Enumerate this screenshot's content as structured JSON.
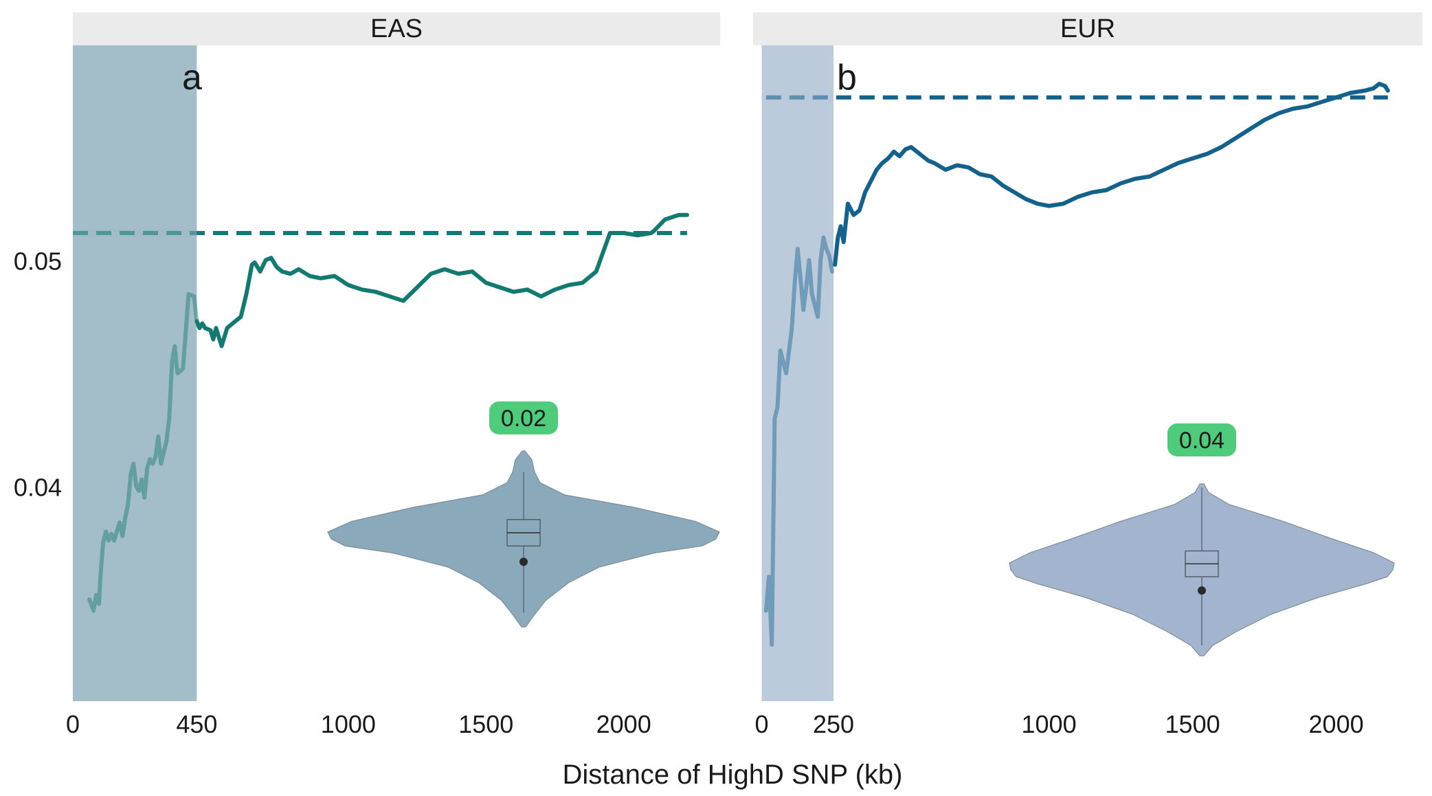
{
  "figure": {
    "xlabel": "Distance of HighD SNP (kb)"
  },
  "chart_data": [
    {
      "type": "line",
      "facet": "EAS",
      "panel_label": "a",
      "xlim": [
        0,
        2350
      ],
      "ylim": [
        0.0305,
        0.0595
      ],
      "y_ticks": [
        0.04,
        0.05
      ],
      "y_tick_labels": [
        "0.04",
        "0.05"
      ],
      "x_ticks": [
        0,
        450,
        1000,
        1500,
        2000
      ],
      "x_tick_labels": [
        "0",
        "450",
        "1000",
        "1500",
        "2000"
      ],
      "shaded_region": [
        0,
        450
      ],
      "colors": {
        "line": "#137a72",
        "shade": "#9fbbc6",
        "strip": "#ebebeb",
        "violin": "#8aaabb",
        "badge": "#4fcb7c"
      },
      "series": [
        {
          "x": [
            60,
            75,
            85,
            95,
            100,
            110,
            120,
            130,
            140,
            150,
            160,
            170,
            180,
            190,
            200,
            210,
            220,
            230,
            240,
            250,
            260,
            270,
            280,
            290,
            300,
            310,
            320,
            330,
            340,
            350,
            360,
            370,
            380,
            400,
            420,
            440,
            450,
            460,
            470,
            480,
            500,
            510,
            520,
            540,
            560,
            580,
            610,
            630,
            650,
            660,
            680,
            700,
            720,
            740,
            760,
            790,
            820,
            860,
            900,
            950,
            1000,
            1050,
            1100,
            1150,
            1200,
            1250,
            1300,
            1350,
            1400,
            1450,
            1500,
            1550,
            1600,
            1650,
            1700,
            1750,
            1800,
            1850,
            1900,
            1950,
            2000,
            2050,
            2100,
            2110,
            2150,
            2200,
            2230
          ],
          "y": [
            0.035,
            0.0345,
            0.0352,
            0.0348,
            0.036,
            0.0375,
            0.038,
            0.0376,
            0.0379,
            0.0376,
            0.038,
            0.0384,
            0.0378,
            0.0386,
            0.0392,
            0.0405,
            0.041,
            0.04,
            0.0398,
            0.0403,
            0.0395,
            0.0408,
            0.0412,
            0.041,
            0.0413,
            0.0422,
            0.041,
            0.0415,
            0.042,
            0.043,
            0.0455,
            0.0462,
            0.045,
            0.0452,
            0.0485,
            0.0484,
            0.0473,
            0.047,
            0.0472,
            0.047,
            0.0469,
            0.0465,
            0.047,
            0.0462,
            0.047,
            0.0472,
            0.0475,
            0.0485,
            0.0498,
            0.0499,
            0.0495,
            0.05,
            0.0501,
            0.0497,
            0.0495,
            0.0494,
            0.0496,
            0.0493,
            0.0492,
            0.0493,
            0.0489,
            0.0487,
            0.0486,
            0.0484,
            0.0482,
            0.0488,
            0.0494,
            0.0496,
            0.0494,
            0.0495,
            0.049,
            0.0488,
            0.0486,
            0.0487,
            0.0484,
            0.0487,
            0.0489,
            0.049,
            0.0495,
            0.0512,
            0.0512,
            0.0511,
            0.0512,
            0.0513,
            0.0518,
            0.052,
            0.052
          ]
        },
        {
          "style": "dashed",
          "x": [
            0,
            2230
          ],
          "y": [
            0.0512,
            0.0512
          ]
        }
      ],
      "inset": {
        "type": "violin",
        "badge": "0.02"
      }
    },
    {
      "type": "line",
      "facet": "EUR",
      "panel_label": "b",
      "xlim": [
        -30,
        2300
      ],
      "ylim": [
        0.0305,
        0.0595
      ],
      "y_ticks": [
        0.04,
        0.05
      ],
      "x_ticks": [
        0,
        250,
        1000,
        1500,
        2000
      ],
      "x_tick_labels": [
        "0",
        "250",
        "1000",
        "1500",
        "2000"
      ],
      "shaded_region": [
        0,
        250
      ],
      "colors": {
        "line": "#13628e",
        "shade": "#b8c8da",
        "strip": "#ebebeb",
        "violin": "#a3b5ce",
        "badge": "#4fcb7c"
      },
      "series": [
        {
          "x": [
            15,
            25,
            35,
            40,
            45,
            55,
            65,
            75,
            85,
            95,
            105,
            115,
            125,
            135,
            145,
            155,
            165,
            175,
            185,
            195,
            205,
            215,
            225,
            235,
            245,
            255,
            265,
            275,
            285,
            300,
            320,
            340,
            360,
            380,
            400,
            420,
            440,
            460,
            480,
            500,
            520,
            540,
            560,
            580,
            600,
            640,
            680,
            720,
            760,
            800,
            840,
            880,
            920,
            960,
            1000,
            1050,
            1100,
            1150,
            1200,
            1250,
            1300,
            1350,
            1400,
            1450,
            1500,
            1550,
            1600,
            1650,
            1700,
            1750,
            1800,
            1850,
            1900,
            1950,
            2000,
            2050,
            2100,
            2130,
            2150,
            2170,
            2180
          ],
          "y": [
            0.0345,
            0.036,
            0.033,
            0.038,
            0.043,
            0.0435,
            0.046,
            0.0455,
            0.045,
            0.046,
            0.047,
            0.049,
            0.0505,
            0.0492,
            0.0478,
            0.0488,
            0.05,
            0.0485,
            0.048,
            0.0475,
            0.05,
            0.051,
            0.0505,
            0.0502,
            0.0495,
            0.0498,
            0.051,
            0.0515,
            0.0508,
            0.0525,
            0.052,
            0.0522,
            0.053,
            0.0535,
            0.054,
            0.0543,
            0.0545,
            0.0548,
            0.0546,
            0.0549,
            0.055,
            0.0548,
            0.0546,
            0.0544,
            0.0543,
            0.054,
            0.0542,
            0.0541,
            0.0538,
            0.0537,
            0.0533,
            0.053,
            0.0527,
            0.0525,
            0.0524,
            0.0525,
            0.0528,
            0.053,
            0.0531,
            0.0534,
            0.0536,
            0.0537,
            0.054,
            0.0543,
            0.0545,
            0.0547,
            0.055,
            0.0554,
            0.0558,
            0.0562,
            0.0565,
            0.0567,
            0.0568,
            0.057,
            0.0572,
            0.0574,
            0.0575,
            0.0576,
            0.0578,
            0.0577,
            0.0575
          ]
        },
        {
          "style": "dashed",
          "x": [
            15,
            2180
          ],
          "y": [
            0.0572,
            0.0572
          ]
        }
      ],
      "inset": {
        "type": "violin",
        "badge": "0.04"
      }
    }
  ]
}
